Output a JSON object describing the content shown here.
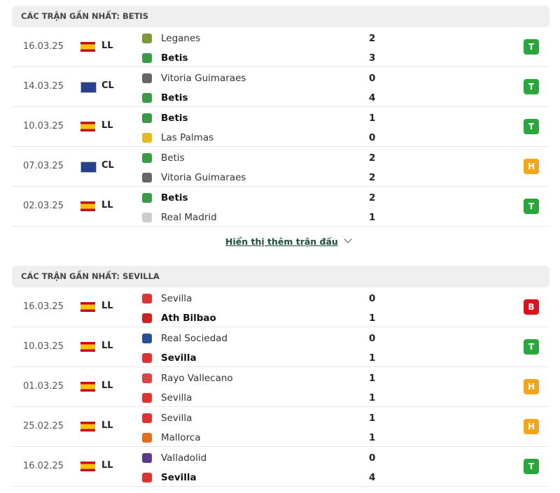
{
  "colors": {
    "win": "#2aa63c",
    "draw": "#f2a51a",
    "loss": "#d9141e"
  },
  "sections": [
    {
      "title": "CÁC TRẬN GẦN NHẤT: BETIS",
      "matches": [
        {
          "date": "16.03.25",
          "flag": "spain",
          "league": "LL",
          "home": "Leganes",
          "away": "Betis",
          "hs": "2",
          "as": "3",
          "bold": 1,
          "result": "T",
          "rtype": "win",
          "logos": [
            "#7a9a3a",
            "#3a9a4a"
          ]
        },
        {
          "date": "14.03.25",
          "flag": "world",
          "league": "CL",
          "home": "Vitoria Guimaraes",
          "away": "Betis",
          "hs": "0",
          "as": "4",
          "bold": 1,
          "result": "T",
          "rtype": "win",
          "logos": [
            "#666",
            "#3a9a4a"
          ]
        },
        {
          "date": "10.03.25",
          "flag": "spain",
          "league": "LL",
          "home": "Betis",
          "away": "Las Palmas",
          "hs": "1",
          "as": "0",
          "bold": 0,
          "result": "T",
          "rtype": "win",
          "logos": [
            "#3a9a4a",
            "#e8b820"
          ]
        },
        {
          "date": "07.03.25",
          "flag": "world",
          "league": "CL",
          "home": "Betis",
          "away": "Vitoria Guimaraes",
          "hs": "2",
          "as": "2",
          "bold": -1,
          "result": "H",
          "rtype": "draw",
          "logos": [
            "#3a9a4a",
            "#666"
          ]
        },
        {
          "date": "02.03.25",
          "flag": "spain",
          "league": "LL",
          "home": "Betis",
          "away": "Real Madrid",
          "hs": "2",
          "as": "1",
          "bold": 0,
          "result": "T",
          "rtype": "win",
          "logos": [
            "#3a9a4a",
            "#ccc"
          ]
        }
      ],
      "more": "Hiển thị thêm trận đấu"
    },
    {
      "title": "CÁC TRẬN GẦN NHẤT: SEVILLA",
      "matches": [
        {
          "date": "16.03.25",
          "flag": "spain",
          "league": "LL",
          "home": "Sevilla",
          "away": "Ath Bilbao",
          "hs": "0",
          "as": "1",
          "bold": 1,
          "result": "B",
          "rtype": "loss",
          "logos": [
            "#d33",
            "#c22"
          ]
        },
        {
          "date": "10.03.25",
          "flag": "spain",
          "league": "LL",
          "home": "Real Sociedad",
          "away": "Sevilla",
          "hs": "0",
          "as": "1",
          "bold": 1,
          "result": "T",
          "rtype": "win",
          "logos": [
            "#2a4f9a",
            "#d33"
          ]
        },
        {
          "date": "01.03.25",
          "flag": "spain",
          "league": "LL",
          "home": "Rayo Vallecano",
          "away": "Sevilla",
          "hs": "1",
          "as": "1",
          "bold": -1,
          "result": "H",
          "rtype": "draw",
          "logos": [
            "#d44",
            "#d33"
          ]
        },
        {
          "date": "25.02.25",
          "flag": "spain",
          "league": "LL",
          "home": "Sevilla",
          "away": "Mallorca",
          "hs": "1",
          "as": "1",
          "bold": -1,
          "result": "H",
          "rtype": "draw",
          "logos": [
            "#d33",
            "#e07020"
          ]
        },
        {
          "date": "16.02.25",
          "flag": "spain",
          "league": "LL",
          "home": "Valladolid",
          "away": "Sevilla",
          "hs": "0",
          "as": "4",
          "bold": 1,
          "result": "T",
          "rtype": "win",
          "logos": [
            "#5a3a8a",
            "#d33"
          ]
        }
      ]
    }
  ]
}
